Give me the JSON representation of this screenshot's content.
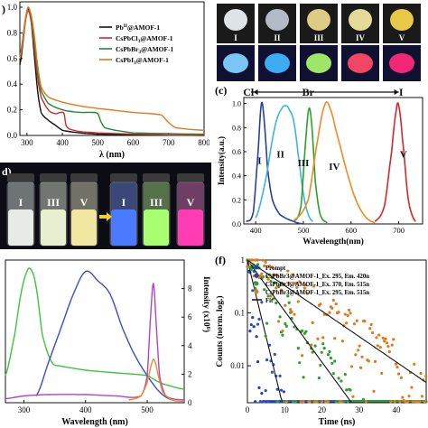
{
  "figure": {
    "panel_a": {
      "letter": "",
      "xlabel": "λ (nm)",
      "x_ticks": [
        "300",
        "400",
        "500",
        "600",
        "700",
        "800"
      ],
      "y_ticks": [
        "1.0",
        "0.8",
        "0.6",
        "0.4",
        "0.2",
        "0.0"
      ],
      "legend": [
        {
          "text": "Pb",
          "sup": "II",
          "rest": "@AMOF-1",
          "color": "#111111"
        },
        {
          "text": "CsPbCl",
          "sub": "3",
          "rest": "@AMOF-1",
          "color": "#d62728"
        },
        {
          "text": "CsPbBr",
          "sub": "3",
          "rest": "@AMOF-1",
          "color": "#1a8a3a"
        },
        {
          "text": "CsPbI",
          "sub": "3",
          "rest": "@AMOF-1",
          "color": "#e07a1f"
        }
      ]
    },
    "panel_b": {
      "letter": "(b)",
      "top_labels": [
        "I",
        "II",
        "III",
        "IV",
        "V"
      ],
      "top_colors": [
        "#e8eef2",
        "#b9c3cf",
        "#e7d68a",
        "#f0e6a0",
        "#f2d34a"
      ],
      "bottom_colors": [
        "#7fd0ff",
        "#3fb6ff",
        "#a7f26b",
        "#ff4a6a",
        "#ff2a7a"
      ]
    },
    "panel_c": {
      "letter": "(c)",
      "top_labels": [
        "Cl",
        "Br",
        "I"
      ],
      "xlabel": "Wavelength(nm)",
      "ylabel": "Intensity(a.u.)",
      "x_ticks": [
        "400",
        "500",
        "600",
        "700"
      ],
      "y_ticks": [
        "1.0",
        "0.8",
        "0.6",
        "0.4",
        "0.2",
        "0.0"
      ],
      "curve_labels": [
        "I",
        "II",
        "III",
        "IV",
        "V"
      ]
    },
    "panel_d": {
      "letter": "d)",
      "vial_labels": [
        "I",
        "III",
        "V",
        "I",
        "III",
        "V"
      ]
    },
    "panel_e": {
      "xlabel": "Wavelength (nm)",
      "ylabel_right": "Intensity (x10",
      "ylabel_right_sup": "6",
      "ylabel_right_end": ")",
      "x_ticks": [
        "300",
        "400",
        "500"
      ],
      "y_right_ticks": [
        "8",
        "6",
        "4",
        "2",
        "0"
      ]
    },
    "panel_f": {
      "letter": "(f)",
      "xlabel": "Time (ns)",
      "ylabel": "Counts (norm. log.)",
      "x_ticks": [
        "0",
        "10",
        "20",
        "30",
        "40"
      ],
      "y_ticks": [
        "1",
        "0.1",
        "0.01"
      ],
      "legend": [
        {
          "text": "Prompt",
          "color": "#1f3fbf",
          "kind": "dot"
        },
        {
          "text": "CsPbBr3@AMOF-1_Ex. 295, Em. 420n",
          "color": "#1f3fbf",
          "kind": "dot"
        },
        {
          "text": "CsPbBr3@AMOF-1_Ex. 370, Em. 515n",
          "color": "#2ca02c",
          "kind": "dot"
        },
        {
          "text": "CsPbBr3@AMOF-1_Ex. 295, Em. 515n",
          "color": "#e07a1f",
          "kind": "dot"
        },
        {
          "text": "Fit",
          "color": "#111111",
          "kind": "line"
        }
      ]
    }
  },
  "chart_data": [
    {
      "type": "line",
      "panel": "a",
      "xlabel": "λ (nm)",
      "xlim": [
        280,
        800
      ],
      "ylim": [
        0,
        1.0
      ],
      "series": [
        {
          "name": "PbII@AMOF-1",
          "x": [
            280,
            300,
            310,
            320,
            330,
            340,
            360,
            380,
            400,
            450,
            500,
            600,
            800
          ],
          "y": [
            0.55,
            0.96,
            0.93,
            0.65,
            0.35,
            0.18,
            0.12,
            0.08,
            0.04,
            0.02,
            0.01,
            0.005,
            0.0
          ]
        },
        {
          "name": "CsPbCl3@AMOF-1",
          "x": [
            280,
            300,
            310,
            320,
            330,
            340,
            360,
            380,
            395,
            405,
            410,
            420,
            450,
            500,
            600,
            800
          ],
          "y": [
            0.6,
            0.95,
            0.92,
            0.7,
            0.45,
            0.3,
            0.2,
            0.17,
            0.18,
            0.17,
            0.08,
            0.05,
            0.03,
            0.02,
            0.01,
            0.0
          ]
        },
        {
          "name": "CsPbBr3@AMOF-1",
          "x": [
            280,
            300,
            310,
            320,
            330,
            340,
            360,
            400,
            450,
            480,
            500,
            510,
            520,
            550,
            600,
            800
          ],
          "y": [
            0.62,
            0.97,
            0.95,
            0.75,
            0.5,
            0.35,
            0.25,
            0.2,
            0.18,
            0.18,
            0.17,
            0.1,
            0.06,
            0.04,
            0.02,
            0.01
          ]
        },
        {
          "name": "CsPbI3@AMOF-1",
          "x": [
            280,
            300,
            310,
            320,
            330,
            340,
            360,
            400,
            450,
            500,
            600,
            680,
            700,
            720,
            800
          ],
          "y": [
            0.6,
            0.97,
            0.96,
            0.8,
            0.55,
            0.38,
            0.3,
            0.26,
            0.23,
            0.21,
            0.18,
            0.16,
            0.1,
            0.06,
            0.04
          ]
        }
      ]
    },
    {
      "type": "line",
      "panel": "c",
      "xlabel": "Wavelength(nm)",
      "ylabel": "Intensity(a.u.)",
      "xlim": [
        375,
        750
      ],
      "ylim": [
        0,
        1.05
      ],
      "series": [
        {
          "name": "I",
          "x": [
            380,
            395,
            405,
            412,
            418,
            425,
            435,
            450,
            480,
            500
          ],
          "y": [
            0.02,
            0.1,
            0.6,
            1.0,
            0.85,
            0.45,
            0.2,
            0.08,
            0.02,
            0.0
          ]
        },
        {
          "name": "II",
          "x": [
            400,
            420,
            440,
            455,
            465,
            470,
            480,
            490,
            500,
            510,
            520
          ],
          "y": [
            0.05,
            0.35,
            0.8,
            0.96,
            0.98,
            0.95,
            0.85,
            0.55,
            0.25,
            0.08,
            0.02
          ]
        },
        {
          "name": "III",
          "x": [
            480,
            495,
            505,
            512,
            518,
            525,
            535,
            550
          ],
          "y": [
            0.02,
            0.15,
            0.7,
            0.96,
            0.8,
            0.35,
            0.08,
            0.01
          ]
        },
        {
          "name": "IV",
          "x": [
            480,
            510,
            530,
            545,
            555,
            570,
            590,
            610,
            630,
            650
          ],
          "y": [
            0.03,
            0.2,
            0.7,
            0.99,
            0.97,
            0.75,
            0.45,
            0.2,
            0.06,
            0.01
          ]
        },
        {
          "name": "V",
          "x": [
            650,
            670,
            685,
            695,
            700,
            708,
            720,
            735
          ],
          "y": [
            0.02,
            0.15,
            0.6,
            0.95,
            0.98,
            0.7,
            0.2,
            0.02
          ]
        }
      ]
    },
    {
      "type": "line",
      "panel": "e",
      "xlabel": "Wavelength (nm)",
      "xlim": [
        270,
        560
      ],
      "y_right_lim": [
        0,
        10
      ],
      "series": [
        {
          "x": [
            270,
            285,
            295,
            305,
            312,
            320,
            330,
            345,
            360,
            400,
            450,
            500,
            520,
            540,
            560
          ],
          "y": [
            0.2,
            0.5,
            0.8,
            0.97,
            0.98,
            0.85,
            0.5,
            0.3,
            0.27,
            0.24,
            0.22,
            0.2,
            0.15,
            0.12,
            0.1
          ]
        },
        {
          "x": [
            320,
            340,
            360,
            380,
            400,
            420,
            440,
            460,
            480,
            500,
            520,
            540
          ],
          "y": [
            0.05,
            0.3,
            0.55,
            0.8,
            0.97,
            0.9,
            0.8,
            0.55,
            0.35,
            0.2,
            0.08,
            0.02
          ]
        },
        {
          "x": [
            270,
            300,
            340,
            400,
            450,
            490,
            500,
            505,
            510,
            515,
            520,
            530,
            560
          ],
          "y": [
            0.03,
            0.05,
            0.06,
            0.06,
            0.05,
            0.05,
            0.2,
            0.6,
            0.88,
            0.55,
            0.2,
            0.05,
            0.02
          ]
        },
        {
          "x": [
            470,
            490,
            500,
            508,
            512,
            518,
            525,
            540,
            560
          ],
          "y": [
            0.02,
            0.05,
            0.15,
            0.3,
            0.31,
            0.2,
            0.08,
            0.02,
            0.01
          ]
        }
      ]
    },
    {
      "type": "scatter",
      "panel": "f",
      "xlabel": "Time (ns)",
      "ylabel": "Counts (norm. log.)",
      "xlim": [
        0,
        48
      ],
      "ylim_log": [
        0.002,
        1
      ],
      "series": [
        {
          "name": "Prompt",
          "tau": 0.6
        },
        {
          "name": "CsPbBr3@AMOF-1_Ex. 295, Em. 420n",
          "tau": 1.5
        },
        {
          "name": "CsPbBr3@AMOF-1_Ex. 370, Em. 515n",
          "tau": 4.5
        },
        {
          "name": "CsPbBr3@AMOF-1_Ex. 295, Em. 515n",
          "tau": 9.0
        }
      ]
    }
  ]
}
